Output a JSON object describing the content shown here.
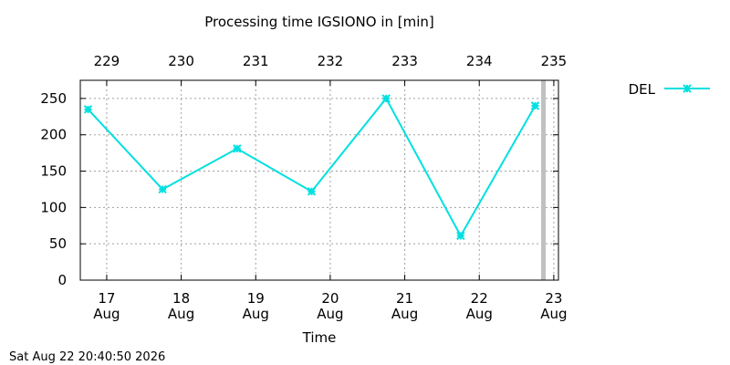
{
  "chart_data": {
    "type": "line",
    "title": "Processing time IGSIONO in [min]",
    "xlabel": "Time",
    "ylabel": "",
    "ylim": [
      0,
      275
    ],
    "y_ticks": [
      0,
      50,
      100,
      150,
      200,
      250
    ],
    "bottom_ticks": [
      {
        "day": "17",
        "month": "Aug"
      },
      {
        "day": "18",
        "month": "Aug"
      },
      {
        "day": "19",
        "month": "Aug"
      },
      {
        "day": "20",
        "month": "Aug"
      },
      {
        "day": "21",
        "month": "Aug"
      },
      {
        "day": "22",
        "month": "Aug"
      },
      {
        "day": "23",
        "month": "Aug"
      }
    ],
    "top_ticks": [
      "229",
      "230",
      "231",
      "232",
      "233",
      "234",
      "235"
    ],
    "grid": true,
    "legend_position": "top-right",
    "series": [
      {
        "name": "DEL",
        "color": "#00e0e0",
        "marker": "asterisk",
        "x": [
          "Aug 16 18:00",
          "Aug 17 18:00",
          "Aug 18 18:00",
          "Aug 19 18:00",
          "Aug 20 18:00",
          "Aug 21 18:00",
          "Aug 22 18:00"
        ],
        "values": [
          235,
          125,
          181,
          122,
          250,
          61,
          240
        ]
      }
    ],
    "current_time_marker": "Aug 22 20:40",
    "current_time_marker_color": "#c0c0c0"
  },
  "footer": {
    "timestamp": "Sat Aug 22 20:40:50 2026"
  }
}
